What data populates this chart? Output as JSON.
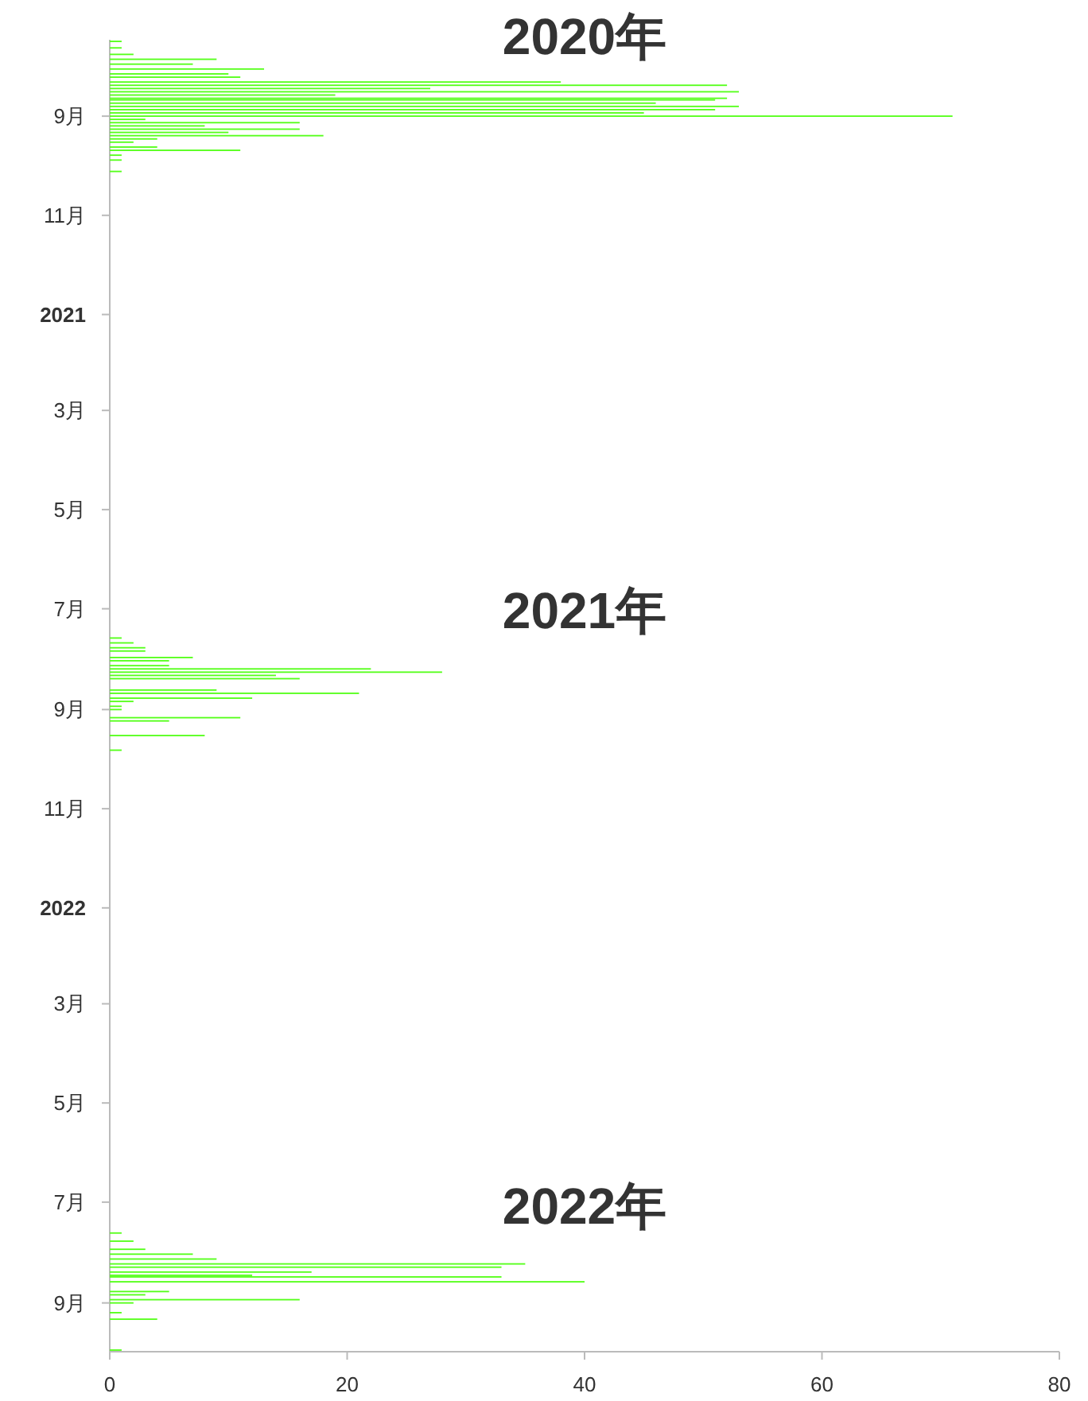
{
  "chart_data": {
    "type": "bar",
    "orientation": "horizontal",
    "color": "#55ff1a",
    "annotations": [
      "2020年",
      "2021年",
      "2022年"
    ],
    "x": [
      "2020-07-17",
      "2020-07-21",
      "2020-07-25",
      "2020-07-28",
      "2020-07-31",
      "2020-08-03",
      "2020-08-06",
      "2020-08-08",
      "2020-08-11",
      "2020-08-13",
      "2020-08-15",
      "2020-08-17",
      "2020-08-19",
      "2020-08-21",
      "2020-08-22",
      "2020-08-24",
      "2020-08-26",
      "2020-08-28",
      "2020-08-30",
      "2020-09-01",
      "2020-09-03",
      "2020-09-05",
      "2020-09-07",
      "2020-09-09",
      "2020-09-11",
      "2020-09-13",
      "2020-09-15",
      "2020-09-17",
      "2020-09-20",
      "2020-09-22",
      "2020-09-25",
      "2020-09-28",
      "2020-10-05",
      "2021-07-19",
      "2021-07-22",
      "2021-07-25",
      "2021-07-27",
      "2021-07-31",
      "2021-08-02",
      "2021-08-05",
      "2021-08-07",
      "2021-08-09",
      "2021-08-11",
      "2021-08-13",
      "2021-08-20",
      "2021-08-22",
      "2021-08-25",
      "2021-08-27",
      "2021-08-30",
      "2021-09-01",
      "2021-09-06",
      "2021-09-08",
      "2021-09-17",
      "2021-09-26",
      "2022-07-20",
      "2022-07-25",
      "2022-07-30",
      "2022-08-02",
      "2022-08-05",
      "2022-08-08",
      "2022-08-10",
      "2022-08-13",
      "2022-08-15",
      "2022-08-16",
      "2022-08-19",
      "2022-08-25",
      "2022-08-27",
      "2022-08-30",
      "2022-09-01",
      "2022-09-07",
      "2022-09-11",
      "2022-09-30"
    ],
    "values": [
      1,
      1,
      2,
      9,
      7,
      13,
      10,
      11,
      38,
      52,
      27,
      53,
      19,
      52,
      51,
      46,
      53,
      51,
      45,
      71,
      3,
      16,
      8,
      16,
      10,
      18,
      4,
      2,
      4,
      11,
      1,
      1,
      1,
      1,
      2,
      3,
      3,
      7,
      5,
      5,
      22,
      28,
      14,
      16,
      9,
      21,
      12,
      2,
      1,
      1,
      11,
      5,
      8,
      1,
      1,
      2,
      3,
      7,
      9,
      35,
      33,
      17,
      12,
      33,
      40,
      5,
      3,
      16,
      2,
      1,
      4,
      1
    ],
    "xlim": [
      0,
      80
    ],
    "xticks": [
      0,
      20,
      40,
      60,
      80
    ],
    "ylim": [
      "2022-10-01",
      "2020-07-16"
    ],
    "yticks": [
      {
        "value": "2020-09-01",
        "label": "9月"
      },
      {
        "value": "2020-11-01",
        "label": "11月"
      },
      {
        "value": "2021-01-01",
        "label": "2021"
      },
      {
        "value": "2021-03-01",
        "label": "3月"
      },
      {
        "value": "2021-05-01",
        "label": "5月"
      },
      {
        "value": "2021-07-01",
        "label": "7月"
      },
      {
        "value": "2021-09-01",
        "label": "9月"
      },
      {
        "value": "2021-11-01",
        "label": "11月"
      },
      {
        "value": "2022-01-01",
        "label": "2022"
      },
      {
        "value": "2022-03-01",
        "label": "3月"
      },
      {
        "value": "2022-05-01",
        "label": "5月"
      },
      {
        "value": "2022-07-01",
        "label": "7月"
      },
      {
        "value": "2022-09-01",
        "label": "9月"
      }
    ]
  }
}
